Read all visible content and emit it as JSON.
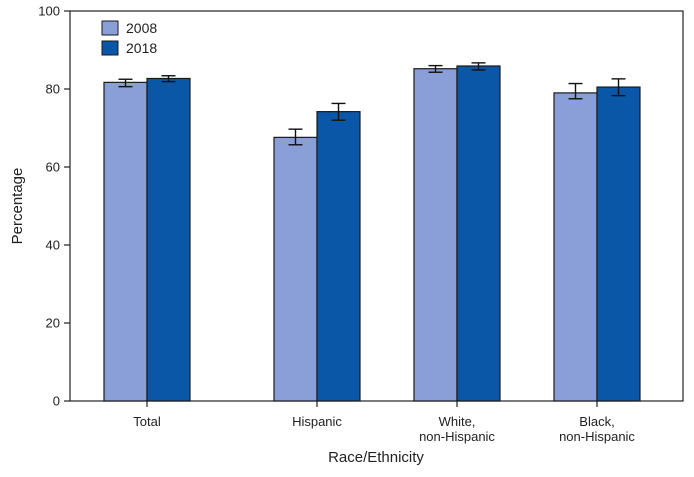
{
  "chart_data": {
    "type": "bar",
    "title": "",
    "xlabel": "Race/Ethnicity",
    "ylabel": "Percentage",
    "ylim": [
      0,
      100
    ],
    "yticks": [
      0,
      20,
      40,
      60,
      80,
      100
    ],
    "grid": false,
    "legend_position": "top-left",
    "categories": [
      [
        "Total"
      ],
      [
        "Hispanic"
      ],
      [
        "White,",
        "non-Hispanic"
      ],
      [
        "Black,",
        "non-Hispanic"
      ]
    ],
    "series": [
      {
        "name": "2008",
        "color": "#8a9fd8",
        "values": [
          81.7,
          67.6,
          85.2,
          79.0
        ],
        "ci_low": [
          80.6,
          65.7,
          84.3,
          77.5
        ],
        "ci_high": [
          82.5,
          69.7,
          86.0,
          81.4
        ]
      },
      {
        "name": "2018",
        "color": "#0a57a8",
        "values": [
          82.7,
          74.2,
          85.9,
          80.5
        ],
        "ci_low": [
          81.9,
          72.0,
          84.9,
          78.3
        ],
        "ci_high": [
          83.4,
          76.3,
          86.7,
          82.6
        ]
      }
    ]
  }
}
